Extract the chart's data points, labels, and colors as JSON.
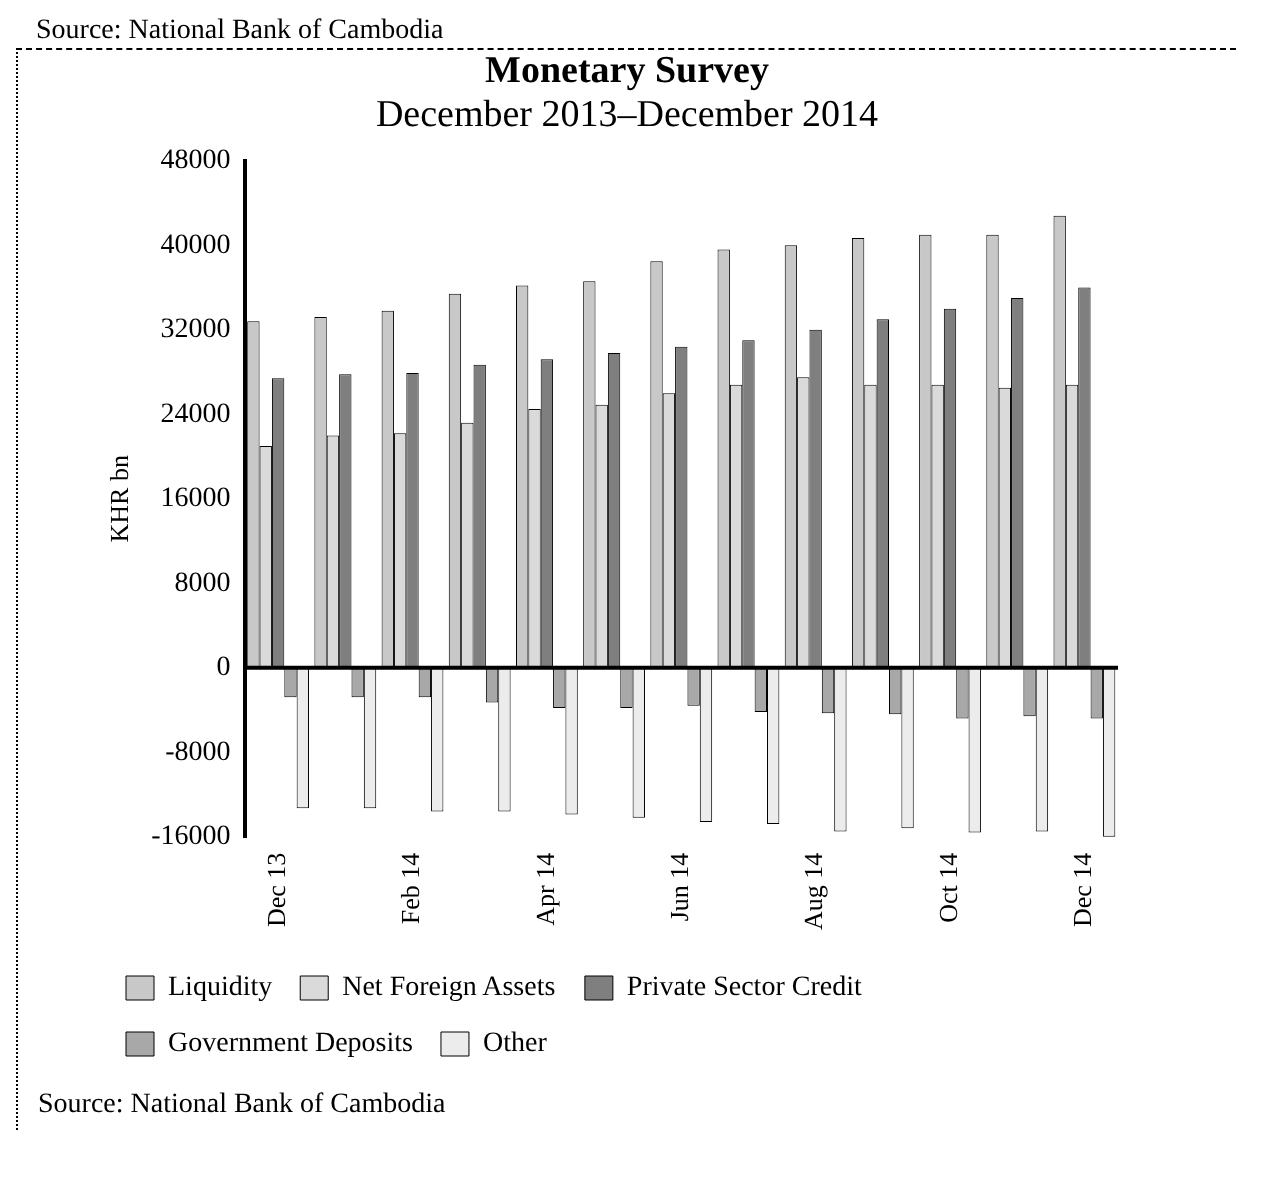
{
  "chart_data": {
    "type": "bar",
    "title": "Monetary Survey",
    "subtitle": "December 2013–December 2014",
    "ylabel": "KHR bn",
    "annotations": [
      "Source: National Bank of Cambodia",
      "Source: National Bank of Cambodia"
    ],
    "categories": [
      "Dec 13",
      null,
      "Feb 14",
      null,
      "Apr 14",
      null,
      "Jun 14",
      null,
      "Aug 14",
      null,
      "Oct 14",
      null,
      "Dec 14"
    ],
    "series": [
      {
        "name": "Liquidity",
        "color": "#c8c8c8",
        "values": [
          32800,
          33200,
          33800,
          35400,
          36200,
          36600,
          38500,
          39600,
          40000,
          40700,
          41000,
          41000,
          42800
        ]
      },
      {
        "name": "Net Foreign Assets",
        "color": "#dadada",
        "values": [
          21000,
          22000,
          22200,
          23200,
          24500,
          24900,
          26000,
          26800,
          27500,
          26800,
          26800,
          26500,
          26800
        ]
      },
      {
        "name": "Private Sector Credit",
        "color": "#7f7f7f",
        "values": [
          27400,
          27800,
          27900,
          28700,
          29200,
          29800,
          30400,
          31000,
          32000,
          33000,
          34000,
          35000,
          36000
        ]
      },
      {
        "name": "Government Deposits",
        "color": "#a8a8a8",
        "values": [
          -2800,
          -2800,
          -2800,
          -3300,
          -3800,
          -3800,
          -3600,
          -4200,
          -4300,
          -4400,
          -4800,
          -4600,
          -4800
        ]
      },
      {
        "name": "Other",
        "color": "#ececec",
        "values": [
          -13300,
          -13300,
          -13600,
          -13600,
          -13900,
          -14200,
          -14600,
          -14800,
          -15500,
          -15200,
          -15600,
          -15500,
          -16000
        ]
      }
    ],
    "ylim": [
      -16000,
      48000
    ],
    "yticks": [
      -16000,
      -8000,
      0,
      8000,
      16000,
      24000,
      32000,
      40000,
      48000
    ],
    "ref_lines": [
      {
        "axis": "y",
        "value": 0,
        "color": "#000000"
      }
    ],
    "grid": false,
    "legend": "bottom"
  }
}
